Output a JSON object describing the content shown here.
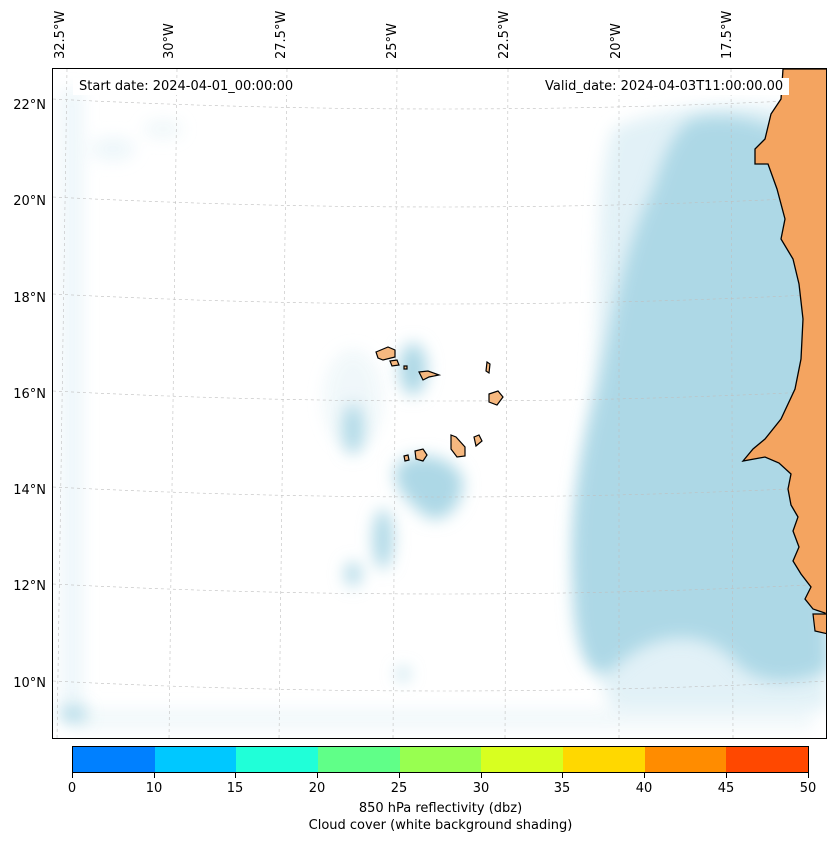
{
  "start_date": "Start date: 2024-04-01_00:00:00",
  "valid_date": "Valid_date: 2024-04-03T11:00:00.00",
  "lon_labels": [
    "32.5°W",
    "30°W",
    "27.5°W",
    "25°W",
    "22.5°W",
    "20°W",
    "17.5°W"
  ],
  "lat_labels": [
    "22°N",
    "20°N",
    "18°N",
    "16°N",
    "14°N",
    "12°N",
    "10°N"
  ],
  "colorbar": {
    "ticks": [
      "0",
      "10",
      "15",
      "20",
      "25",
      "30",
      "35",
      "40",
      "45",
      "50"
    ],
    "colors": [
      "#0080ff",
      "#00c8ff",
      "#20ffd8",
      "#60ff88",
      "#98ff50",
      "#d8ff20",
      "#ffd800",
      "#ff8c00",
      "#ff4800"
    ],
    "label_line1": "850 hPa reflectivity (dbz)",
    "label_line2": "Cloud cover (white background shading)"
  },
  "colors": {
    "land": "#f4a460",
    "cloud": "#add8e6",
    "ocean": "#ffffff"
  }
}
